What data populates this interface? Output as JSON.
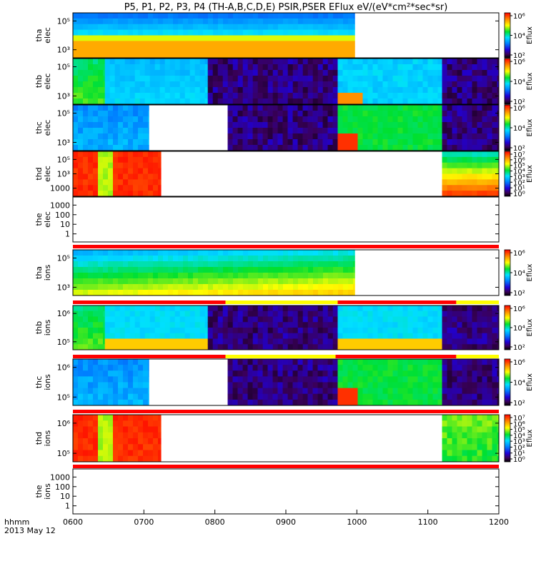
{
  "title": "P5, P1, P2, P3, P4 (TH-A,B,C,D,E) PSIR,PSER EFlux eV/(eV*cm²*sec*sr)",
  "time_axis": {
    "tick_labels": [
      "0600",
      "0700",
      "0800",
      "0900",
      "1000",
      "1100",
      "1200"
    ],
    "unit_label": "hhmm",
    "date_label": "2013 May 12",
    "range_hours": [
      6,
      12
    ]
  },
  "colors": {
    "frame": "#000000",
    "flag_red": "#ff0000",
    "flag_yellow": "#ffff00",
    "background": "#ffffff"
  },
  "colorbar_label": "Eflux",
  "chart_data": {
    "type": "heatmap",
    "x_units": "UT hours",
    "panels": [
      {
        "probe": "tha",
        "species": "elec",
        "yticks": [
          "10⁵",
          "10³"
        ],
        "colorbar_ticks": [
          "10⁶",
          "10⁴",
          "10²"
        ],
        "log_scale": true,
        "segments": [
          {
            "t0": 6.0,
            "t1": 9.97,
            "pattern": "tha_elec"
          }
        ]
      },
      {
        "probe": "thb",
        "species": "elec",
        "yticks": [
          "10⁵",
          "10³"
        ],
        "colorbar_ticks": [
          "10⁶",
          "10⁴",
          "10²"
        ],
        "log_scale": true,
        "segments": [
          {
            "t0": 6.0,
            "t1": 6.45,
            "pattern": "green"
          },
          {
            "t0": 6.45,
            "t1": 7.9,
            "pattern": "cyan"
          },
          {
            "t0": 7.9,
            "t1": 9.73,
            "pattern": "dark"
          },
          {
            "t0": 9.73,
            "t1": 11.2,
            "pattern": "cyan_spot"
          },
          {
            "t0": 11.2,
            "t1": 12.0,
            "pattern": "dark"
          }
        ]
      },
      {
        "probe": "thc",
        "species": "elec",
        "yticks": [
          "10⁵",
          "10³"
        ],
        "colorbar_ticks": [
          "10⁶",
          "10⁴",
          "10²"
        ],
        "log_scale": true,
        "segments": [
          {
            "t0": 6.0,
            "t1": 7.07,
            "pattern": "blue"
          },
          {
            "t0": 8.18,
            "t1": 9.73,
            "pattern": "dark"
          },
          {
            "t0": 9.73,
            "t1": 11.2,
            "pattern": "green_red"
          },
          {
            "t0": 11.2,
            "t1": 12.0,
            "pattern": "dark"
          }
        ]
      },
      {
        "probe": "thd",
        "species": "elec",
        "yticks": [
          "10⁵",
          "10³",
          "1000"
        ],
        "colorbar_ticks": [
          "10⁷",
          "10⁶",
          "10⁵",
          "10⁴",
          "10³",
          "10²",
          "10¹",
          "10⁰"
        ],
        "log_scale": true,
        "segments": [
          {
            "t0": 6.0,
            "t1": 7.24,
            "pattern": "red"
          },
          {
            "t0": 11.2,
            "t1": 12.0,
            "pattern": "grad_red"
          }
        ]
      },
      {
        "probe": "the",
        "species": "elec",
        "yticks": [
          "1000",
          "100",
          "10",
          "1"
        ],
        "colorbar_ticks": [],
        "log_scale": true,
        "segments": []
      },
      {
        "probe": "tha",
        "species": "ions",
        "yticks": [
          "10⁵",
          "10³"
        ],
        "colorbar_ticks": [
          "10⁶",
          "10⁴",
          "10²"
        ],
        "log_scale": true,
        "segments": [
          {
            "t0": 6.0,
            "t1": 9.97,
            "pattern": "tha_ions"
          }
        ]
      },
      {
        "probe": "thb",
        "species": "ions",
        "yticks": [
          "10⁶",
          "10⁵"
        ],
        "colorbar_ticks": [
          "10⁶",
          "10⁴",
          "10²"
        ],
        "log_scale": true,
        "segments": [
          {
            "t0": 6.0,
            "t1": 6.45,
            "pattern": "green"
          },
          {
            "t0": 6.45,
            "t1": 7.9,
            "pattern": "cyan_yellow"
          },
          {
            "t0": 7.9,
            "t1": 9.73,
            "pattern": "dark"
          },
          {
            "t0": 9.73,
            "t1": 11.2,
            "pattern": "cyan_yellow"
          },
          {
            "t0": 11.2,
            "t1": 12.0,
            "pattern": "dark"
          }
        ]
      },
      {
        "probe": "thc",
        "species": "ions",
        "yticks": [
          "10⁶",
          "10⁵"
        ],
        "colorbar_ticks": [
          "10⁶",
          "10⁴",
          "10²"
        ],
        "log_scale": true,
        "segments": [
          {
            "t0": 6.0,
            "t1": 7.07,
            "pattern": "blue"
          },
          {
            "t0": 8.18,
            "t1": 9.73,
            "pattern": "dark"
          },
          {
            "t0": 9.73,
            "t1": 11.2,
            "pattern": "green_red"
          },
          {
            "t0": 11.2,
            "t1": 12.0,
            "pattern": "dark"
          }
        ]
      },
      {
        "probe": "thd",
        "species": "ions",
        "yticks": [
          "10⁶",
          "10⁵"
        ],
        "colorbar_ticks": [
          "10⁷",
          "10⁶",
          "10⁵",
          "10⁴",
          "10³",
          "10²",
          "10¹",
          "10⁰"
        ],
        "log_scale": true,
        "segments": [
          {
            "t0": 6.0,
            "t1": 7.24,
            "pattern": "red"
          },
          {
            "t0": 11.2,
            "t1": 12.0,
            "pattern": "green_top"
          }
        ]
      },
      {
        "probe": "the",
        "species": "ions",
        "yticks": [
          "1000",
          "100",
          "10",
          "1"
        ],
        "colorbar_ticks": [],
        "log_scale": true,
        "segments": []
      }
    ],
    "flag_bars": [
      {
        "after_panel": 4,
        "segments": [
          {
            "t0": 6.0,
            "t1": 12.0,
            "color": "red"
          }
        ]
      },
      {
        "after_panel": 5,
        "segments": [
          {
            "t0": 6.0,
            "t1": 8.15,
            "color": "red"
          },
          {
            "t0": 8.15,
            "t1": 9.73,
            "color": "yellow"
          },
          {
            "t0": 9.73,
            "t1": 11.4,
            "color": "red"
          },
          {
            "t0": 11.4,
            "t1": 12.0,
            "color": "yellow"
          }
        ]
      },
      {
        "after_panel": 6,
        "segments": [
          {
            "t0": 6.0,
            "t1": 8.15,
            "color": "red"
          },
          {
            "t0": 8.15,
            "t1": 9.7,
            "color": "yellow"
          },
          {
            "t0": 9.7,
            "t1": 11.4,
            "color": "red"
          },
          {
            "t0": 11.4,
            "t1": 12.0,
            "color": "yellow"
          }
        ]
      },
      {
        "after_panel": 7,
        "segments": [
          {
            "t0": 6.0,
            "t1": 12.0,
            "color": "red"
          }
        ]
      },
      {
        "after_panel": 8,
        "segments": [
          {
            "t0": 6.0,
            "t1": 12.0,
            "color": "red"
          }
        ]
      }
    ]
  }
}
